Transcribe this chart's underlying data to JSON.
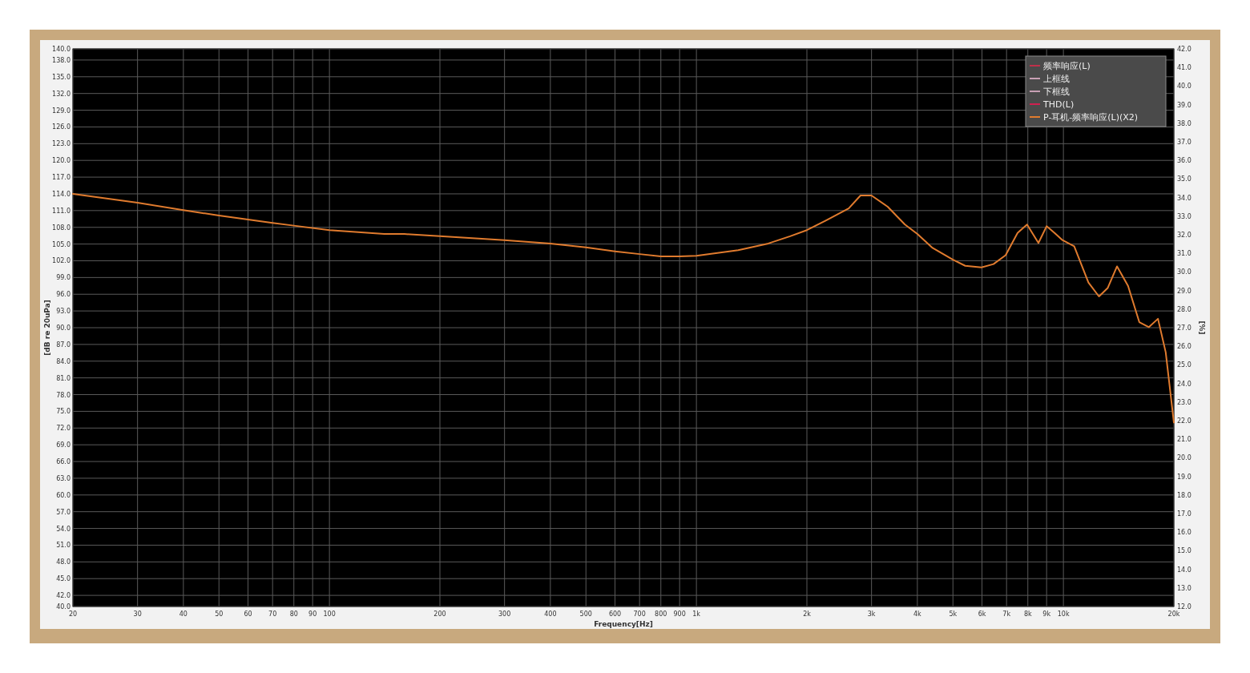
{
  "chart_data": {
    "type": "line",
    "xlabel": "Frequency[Hz]",
    "ylabel": "[dB re 20uPa]",
    "y2label": "[%]",
    "log": "x",
    "grid": true,
    "legend": "top right",
    "xlim": [
      20,
      20000
    ],
    "xticks": [
      20,
      30,
      40,
      50,
      60,
      70,
      80,
      90,
      100,
      200,
      300,
      400,
      500,
      600,
      700,
      800,
      900,
      {
        "value": 1000,
        "label": "1k"
      },
      {
        "value": 2000,
        "label": "2k"
      },
      {
        "value": 3000,
        "label": "3k"
      },
      {
        "value": 4000,
        "label": "4k"
      },
      {
        "value": 5000,
        "label": "5k"
      },
      {
        "value": 6000,
        "label": "6k"
      },
      {
        "value": 7000,
        "label": "7k"
      },
      {
        "value": 8000,
        "label": "8k"
      },
      {
        "value": 9000,
        "label": "9k"
      },
      {
        "value": 10000,
        "label": "10k"
      },
      {
        "value": 20000,
        "label": "20k"
      }
    ],
    "ylim": [
      40,
      140
    ],
    "yticks": [
      {
        "value": 40,
        "label": "40.0"
      },
      {
        "value": 42,
        "label": "42.0"
      },
      {
        "value": 45,
        "label": "45.0"
      },
      {
        "value": 48,
        "label": "48.0"
      },
      {
        "value": 51,
        "label": "51.0"
      },
      {
        "value": 54,
        "label": "54.0"
      },
      {
        "value": 57,
        "label": "57.0"
      },
      {
        "value": 60,
        "label": "60.0"
      },
      {
        "value": 63,
        "label": "63.0"
      },
      {
        "value": 66,
        "label": "66.0"
      },
      {
        "value": 69,
        "label": "69.0"
      },
      {
        "value": 72,
        "label": "72.0"
      },
      {
        "value": 75,
        "label": "75.0"
      },
      {
        "value": 78,
        "label": "78.0"
      },
      {
        "value": 81,
        "label": "81.0"
      },
      {
        "value": 84,
        "label": "84.0"
      },
      {
        "value": 87,
        "label": "87.0"
      },
      {
        "value": 90,
        "label": "90.0"
      },
      {
        "value": 93,
        "label": "93.0"
      },
      {
        "value": 96,
        "label": "96.0"
      },
      {
        "value": 99,
        "label": "99.0"
      },
      {
        "value": 102,
        "label": "102.0"
      },
      {
        "value": 105,
        "label": "105.0"
      },
      {
        "value": 108,
        "label": "108.0"
      },
      {
        "value": 111,
        "label": "111.0"
      },
      {
        "value": 114,
        "label": "114.0"
      },
      {
        "value": 117,
        "label": "117.0"
      },
      {
        "value": 120,
        "label": "120.0"
      },
      {
        "value": 123,
        "label": "123.0"
      },
      {
        "value": 126,
        "label": "126.0"
      },
      {
        "value": 129,
        "label": "129.0"
      },
      {
        "value": 132,
        "label": "132.0"
      },
      {
        "value": 135,
        "label": "135.0"
      },
      {
        "value": 138,
        "label": "138.0"
      },
      {
        "value": 140,
        "label": "140.0"
      }
    ],
    "y2lim": [
      12,
      42
    ],
    "y2ticks": [
      {
        "value": 12,
        "label": "12.0"
      },
      {
        "value": 13,
        "label": "13.0"
      },
      {
        "value": 14,
        "label": "14.0"
      },
      {
        "value": 15,
        "label": "15.0"
      },
      {
        "value": 16,
        "label": "16.0"
      },
      {
        "value": 17,
        "label": "17.0"
      },
      {
        "value": 18,
        "label": "18.0"
      },
      {
        "value": 19,
        "label": "19.0"
      },
      {
        "value": 20,
        "label": "20.0"
      },
      {
        "value": 21,
        "label": "21.0"
      },
      {
        "value": 22,
        "label": "22.0"
      },
      {
        "value": 23,
        "label": "23.0"
      },
      {
        "value": 24,
        "label": "24.0"
      },
      {
        "value": 25,
        "label": "25.0"
      },
      {
        "value": 26,
        "label": "26.0"
      },
      {
        "value": 27,
        "label": "27.0"
      },
      {
        "value": 28,
        "label": "28.0"
      },
      {
        "value": 29,
        "label": "29.0"
      },
      {
        "value": 30,
        "label": "30.0"
      },
      {
        "value": 31,
        "label": "31.0"
      },
      {
        "value": 32,
        "label": "32.0"
      },
      {
        "value": 33,
        "label": "33.0"
      },
      {
        "value": 34,
        "label": "34.0"
      },
      {
        "value": 35,
        "label": "35.0"
      },
      {
        "value": 36,
        "label": "36.0"
      },
      {
        "value": 37,
        "label": "37.0"
      },
      {
        "value": 38,
        "label": "38.0"
      },
      {
        "value": 39,
        "label": "39.0"
      },
      {
        "value": 40,
        "label": "40.0"
      },
      {
        "value": 41,
        "label": "41.0"
      },
      {
        "value": 42,
        "label": "42.0"
      }
    ],
    "series": [
      {
        "name": "频率响应(L)",
        "color": "#c0304a"
      },
      {
        "name": "上框线",
        "color": "#c8a0b4"
      },
      {
        "name": "下框线",
        "color": "#c8a0b4"
      },
      {
        "name": "THD(L)",
        "color": "#d02050"
      },
      {
        "name": "P-耳机-频率响应(L)(X2)",
        "color": "#e07b2e",
        "x": [
          20,
          30,
          40,
          50,
          60,
          70,
          80,
          100,
          141,
          160,
          200,
          300,
          400,
          500,
          600,
          700,
          800,
          900,
          1000,
          1300,
          1570,
          1800,
          2000,
          2250,
          2600,
          2800,
          3000,
          3320,
          3700,
          4000,
          4400,
          5000,
          5400,
          5980,
          6450,
          6960,
          7500,
          7960,
          8550,
          9000,
          9460,
          9940,
          10700,
          11700,
          12500,
          13200,
          14000,
          15000,
          16100,
          17100,
          18100,
          19000,
          20000
        ],
        "values": [
          114.0,
          112.4,
          111.1,
          110.1,
          109.4,
          108.8,
          108.3,
          107.5,
          106.8,
          106.8,
          106.4,
          105.7,
          105.1,
          104.4,
          103.7,
          103.2,
          102.8,
          102.8,
          102.9,
          103.9,
          105.1,
          106.4,
          107.5,
          109.2,
          111.4,
          113.7,
          113.7,
          111.7,
          108.5,
          106.8,
          104.3,
          102.2,
          101.1,
          100.8,
          101.4,
          103.0,
          107.0,
          108.5,
          105.2,
          108.2,
          107.0,
          105.7,
          104.6,
          98.1,
          95.6,
          97.1,
          101.0,
          97.5,
          91.0,
          90.1,
          91.6,
          85.6,
          73.0
        ]
      }
    ]
  }
}
